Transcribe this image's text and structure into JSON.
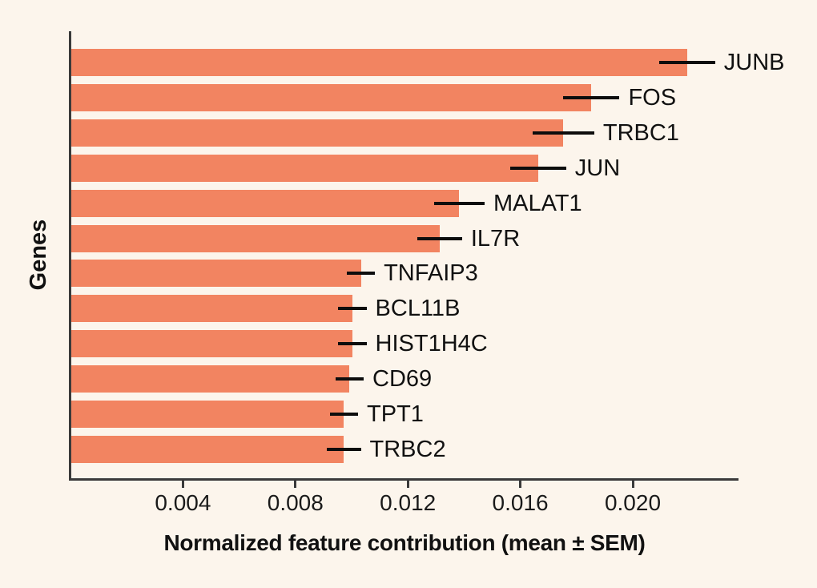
{
  "figure": {
    "background_color": "#fcf5ec",
    "axis_color": "#3a3a3a",
    "text_color": "#111111"
  },
  "chart_data": {
    "type": "bar",
    "orientation": "horizontal",
    "title": "",
    "xlabel": "Normalized feature contribution (mean ± SEM)",
    "ylabel": "Genes",
    "categories": [
      "JUNB",
      "FOS",
      "TRBC1",
      "JUN",
      "MALAT1",
      "IL7R",
      "TNFAIP3",
      "BCL11B",
      "HIST1H4C",
      "CD69",
      "TPT1",
      "TRBC2"
    ],
    "values": [
      0.0219,
      0.0185,
      0.0175,
      0.0166,
      0.0138,
      0.0131,
      0.0103,
      0.01,
      0.01,
      0.0099,
      0.0097,
      0.0097
    ],
    "errors": [
      0.001,
      0.001,
      0.0011,
      0.001,
      0.0009,
      0.0008,
      0.0005,
      0.0005,
      0.0005,
      0.0005,
      0.0005,
      0.0006
    ],
    "x_ticks": [
      0.004,
      0.008,
      0.012,
      0.016,
      0.02
    ],
    "x_tick_labels": [
      "0.004",
      "0.008",
      "0.012",
      "0.016",
      "0.020"
    ],
    "xlim": [
      0,
      0.0238
    ],
    "bar_color": "#f28461",
    "error_bar_color": "#0d0d0d",
    "grid": false,
    "legend": "none",
    "error_bars": "horizontal, mean ± SEM, no caps",
    "bar_value_labels": "gene name to the right of each error bar"
  }
}
